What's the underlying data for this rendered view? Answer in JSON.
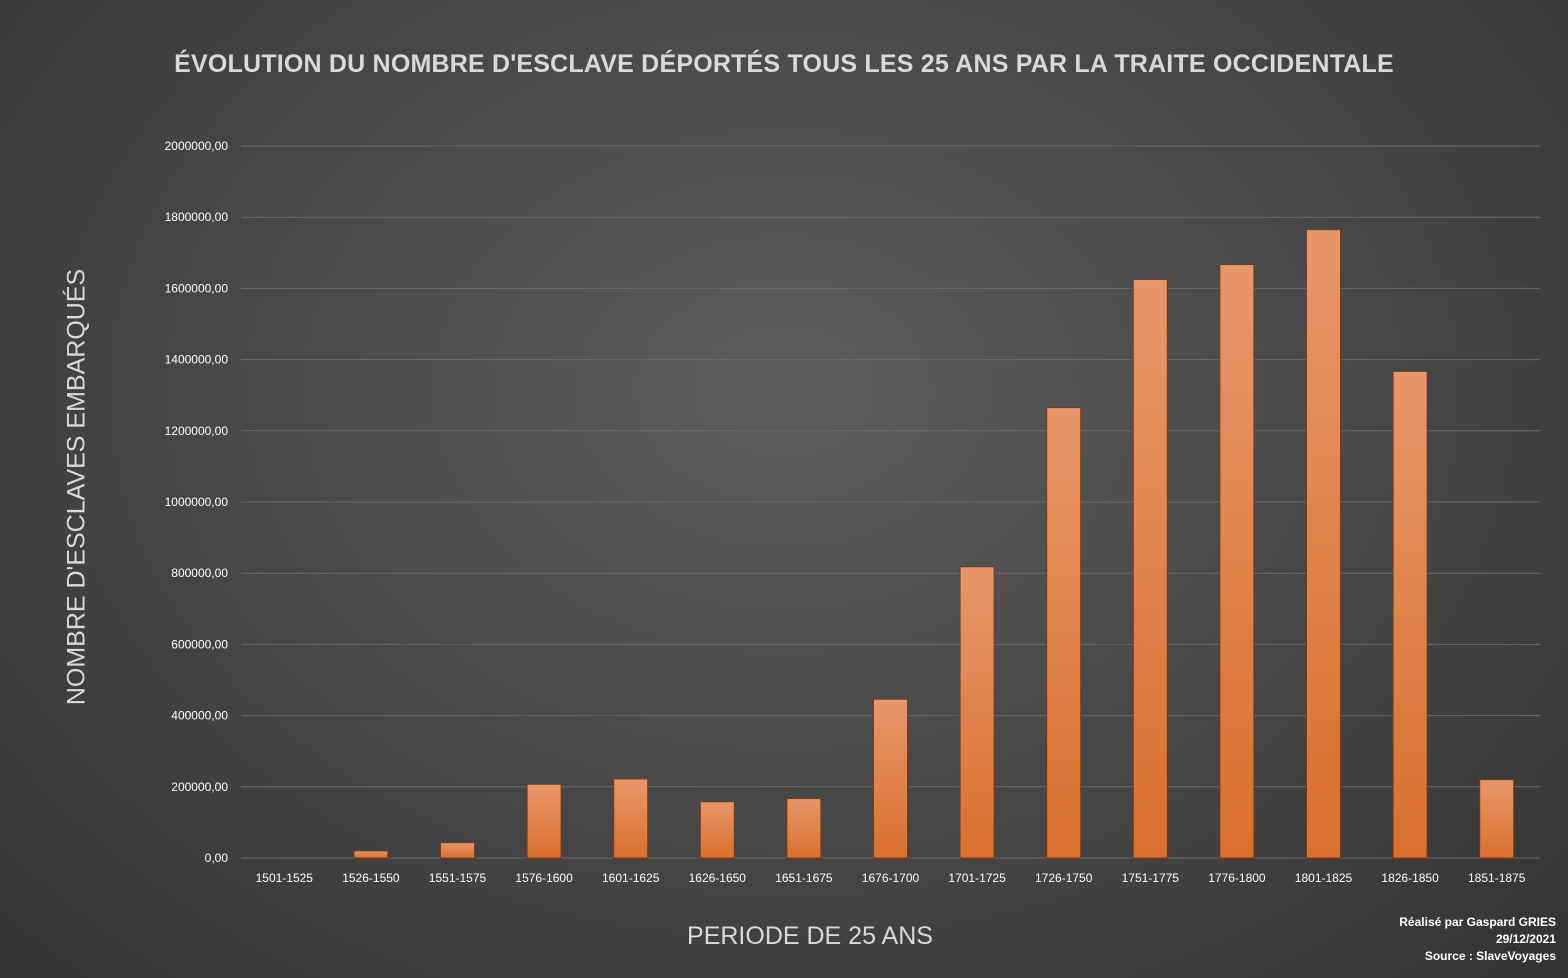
{
  "chart_data": {
    "type": "bar",
    "title": "ÉVOLUTION DU NOMBRE D'ESCLAVE DÉPORTÉS TOUS LES 25 ANS PAR LA TRAITE OCCIDENTALE",
    "xlabel": "PERIODE DE 25 ANS",
    "ylabel": "NOMBRE D'ESCLAVES EMBARQUÉS",
    "categories": [
      "1501-1525",
      "1526-1550",
      "1551-1575",
      "1576-1600",
      "1601-1625",
      "1626-1650",
      "1651-1675",
      "1676-1700",
      "1701-1725",
      "1726-1750",
      "1751-1775",
      "1776-1800",
      "1801-1825",
      "1826-1850",
      "1851-1875"
    ],
    "values": [
      0,
      20000,
      43000,
      207000,
      222000,
      158000,
      167000,
      446000,
      818000,
      1265000,
      1625000,
      1667000,
      1765000,
      1367000,
      220000
    ],
    "ylim": [
      0,
      2000000
    ],
    "yticks": [
      0,
      200000,
      400000,
      600000,
      800000,
      1000000,
      1200000,
      1400000,
      1600000,
      1800000,
      2000000
    ],
    "ytick_labels": [
      "0,00",
      "200000,00",
      "400000,00",
      "600000,00",
      "800000,00",
      "1000000,00",
      "1200000,00",
      "1400000,00",
      "1600000,00",
      "1800000,00",
      "2000000,00"
    ],
    "grid": true,
    "legend": "none",
    "colors": {
      "bar_top": "#e8976a",
      "bar_bottom": "#d9702e",
      "bar_stroke": "#7a3a15",
      "grid": "#6a6a6a",
      "tick_text": "#ffffff"
    }
  },
  "credits": {
    "author": "Réalisé par Gaspard GRIES",
    "date": "29/12/2021",
    "source": "Source : SlaveVoyages"
  }
}
